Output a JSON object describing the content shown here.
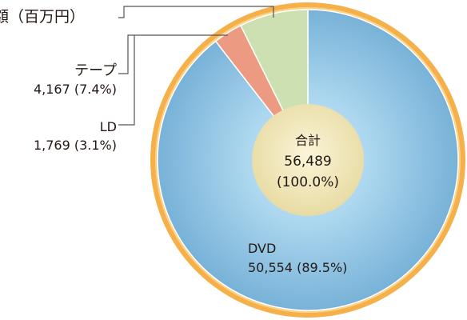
{
  "chart_data": {
    "type": "pie",
    "title": "額（百万円）",
    "title_visible": "額（百万円）",
    "total_label": "合計",
    "total_value": "56,489",
    "total_share": "(100.0%)",
    "slices": [
      {
        "name": "DVD",
        "value": 50554,
        "value_label": "50,554",
        "share_label": "(89.5%)",
        "color": "#8fc6e6"
      },
      {
        "name": "LD",
        "value": 1769,
        "value_label": "1,769",
        "share_label": "(3.1%)",
        "color": "#ec9a82"
      },
      {
        "name": "テープ",
        "value": 4167,
        "value_label": "4,167",
        "share_label": "(7.4%)",
        "color": "#cde0b1"
      }
    ],
    "colors": {
      "ring": "#f5b04a",
      "center": "#f3ebc2",
      "leader": "#555555"
    }
  }
}
